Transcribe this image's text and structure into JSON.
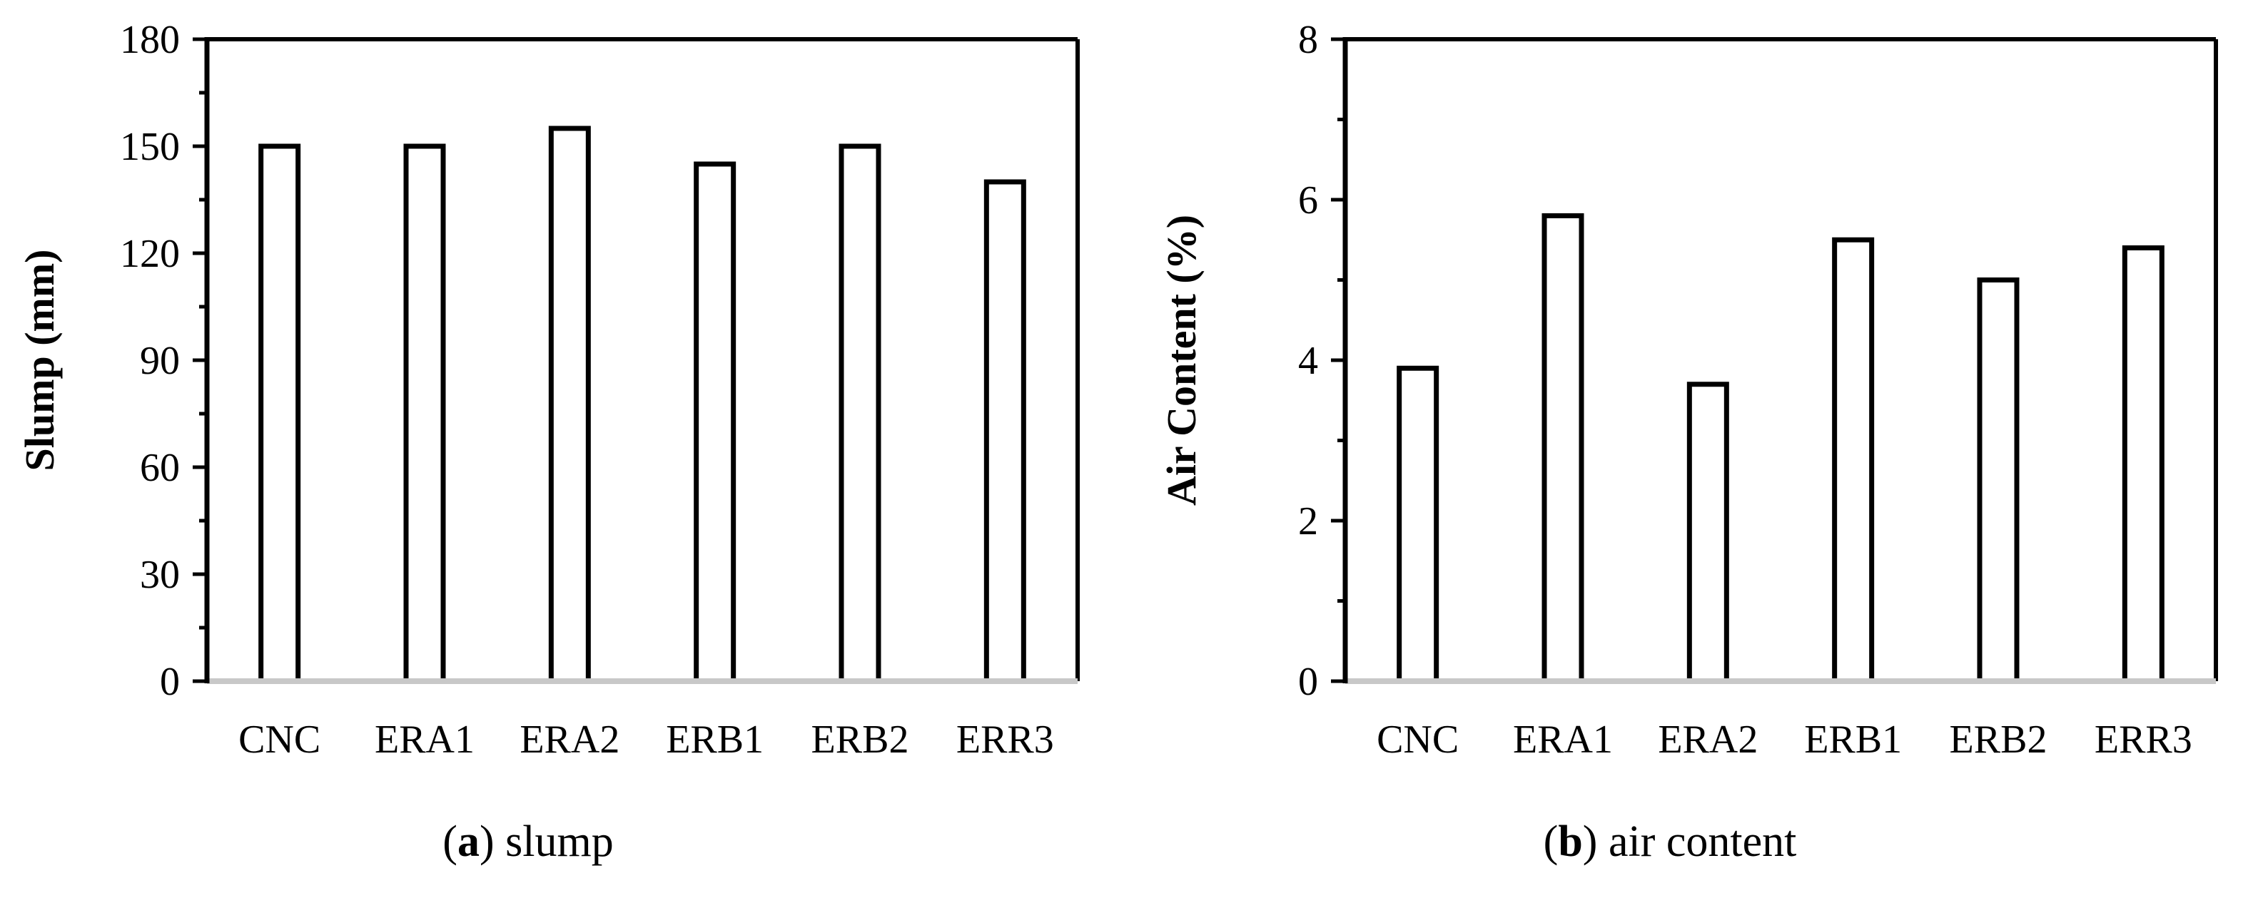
{
  "chart_data": [
    {
      "type": "bar",
      "categories": [
        "CNC",
        "ERA1",
        "ERA2",
        "ERB1",
        "ERB2",
        "ERR3"
      ],
      "values": [
        150,
        150,
        155,
        145,
        150,
        140
      ],
      "title": "",
      "xlabel": "",
      "ylabel": "Slump (mm)",
      "ylim": [
        0,
        180
      ],
      "yticks": [
        0,
        30,
        60,
        90,
        120,
        150,
        180
      ],
      "caption_letter": "a",
      "caption_text": "slump",
      "grid": false,
      "bar_fill": "#ffffff",
      "bar_stroke": "#000000"
    },
    {
      "type": "bar",
      "categories": [
        "CNC",
        "ERA1",
        "ERA2",
        "ERB1",
        "ERB2",
        "ERR3"
      ],
      "values": [
        3.9,
        5.8,
        3.7,
        5.5,
        5.0,
        5.4
      ],
      "title": "",
      "xlabel": "",
      "ylabel": "Air Content (%)",
      "ylim": [
        0,
        8
      ],
      "yticks": [
        0,
        2,
        4,
        6,
        8
      ],
      "caption_letter": "b",
      "caption_text": "air content",
      "grid": false,
      "bar_fill": "#ffffff",
      "bar_stroke": "#000000"
    }
  ]
}
